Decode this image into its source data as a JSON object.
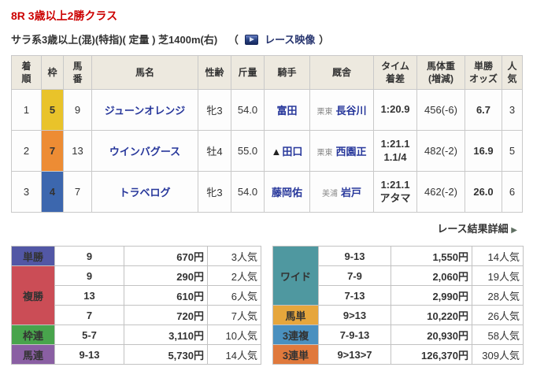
{
  "page": {
    "title": "8R 3歳以上2勝クラス",
    "conditions": "サラ系3歳以上(混)(特指)( 定量 ) 芝1400m(右)",
    "video_link": {
      "open_paren": "（",
      "label": "レース映像",
      "close_paren": "）",
      "icon": "video-play-icon"
    },
    "detail_link": {
      "label": "レース結果詳細",
      "arrow": "▶",
      "icon": "arrow-right-icon"
    }
  },
  "results_table": {
    "headers": [
      "着\n順",
      "枠",
      "馬\n番",
      "馬名",
      "性齢",
      "斤量",
      "騎手",
      "厩舎",
      "タイム\n着差",
      "馬体重\n(増減)",
      "単勝\nオッズ",
      "人\n気"
    ],
    "rows": [
      {
        "finish": "1",
        "frame": "5",
        "frame_color": "#e9c32a",
        "horse_no": "9",
        "horse": "ジューンオレンジ",
        "sex_age": "牝3",
        "load": "54.0",
        "jockey_mark": "",
        "jockey": "富田",
        "stable_region": "栗東",
        "stable": "長谷川",
        "time": "1:20.9",
        "margin": "",
        "body_weight": "456(-6)",
        "odds": "6.7",
        "popularity": "3",
        "popularity_highlight": true
      },
      {
        "finish": "2",
        "frame": "7",
        "frame_color": "#ed8c34",
        "horse_no": "13",
        "horse": "ウインバグース",
        "sex_age": "牡4",
        "load": "55.0",
        "jockey_mark": "▲",
        "jockey": "田口",
        "stable_region": "栗東",
        "stable": "西園正",
        "time": "1:21.1",
        "margin": "1.1/4",
        "body_weight": "482(-2)",
        "odds": "16.9",
        "popularity": "5",
        "popularity_highlight": false
      },
      {
        "finish": "3",
        "frame": "4",
        "frame_color": "#3c67ae",
        "horse_no": "7",
        "horse": "トラベログ",
        "sex_age": "牝3",
        "load": "54.0",
        "jockey_mark": "",
        "jockey": "藤岡佑",
        "stable_region": "美浦",
        "stable": "岩戸",
        "time": "1:21.1",
        "margin": "アタマ",
        "body_weight": "462(-2)",
        "odds": "26.0",
        "popularity": "6",
        "popularity_highlight": false
      }
    ]
  },
  "payout_left": {
    "groups": [
      {
        "label": "単勝",
        "color": "#5257a5",
        "rows": [
          {
            "combo": "9",
            "payout": "670円",
            "pop": "3人気"
          }
        ]
      },
      {
        "label": "複勝",
        "color": "#cb4d56",
        "rows": [
          {
            "combo": "9",
            "payout": "290円",
            "pop": "2人気"
          },
          {
            "combo": "13",
            "payout": "610円",
            "pop": "6人気"
          },
          {
            "combo": "7",
            "payout": "720円",
            "pop": "7人気"
          }
        ]
      },
      {
        "label": "枠連",
        "color": "#48a44c",
        "rows": [
          {
            "combo": "5-7",
            "payout": "3,110円",
            "pop": "10人気"
          }
        ]
      },
      {
        "label": "馬連",
        "color": "#8a5fa3",
        "rows": [
          {
            "combo": "9-13",
            "payout": "5,730円",
            "pop": "14人気"
          }
        ]
      }
    ]
  },
  "payout_right": {
    "groups": [
      {
        "label": "ワイド",
        "color": "#4f98a0",
        "rows": [
          {
            "combo": "9-13",
            "payout": "1,550円",
            "pop": "14人気"
          },
          {
            "combo": "7-9",
            "payout": "2,060円",
            "pop": "19人気"
          },
          {
            "combo": "7-13",
            "payout": "2,990円",
            "pop": "28人気"
          }
        ]
      },
      {
        "label": "馬単",
        "color": "#e6a63c",
        "rows": [
          {
            "combo": "9>13",
            "payout": "10,220円",
            "pop": "26人気"
          }
        ]
      },
      {
        "label": "3連複",
        "color": "#4a90bf",
        "rows": [
          {
            "combo": "7-9-13",
            "payout": "20,930円",
            "pop": "58人気"
          }
        ]
      },
      {
        "label": "3連単",
        "color": "#e0793c",
        "rows": [
          {
            "combo": "9>13>7",
            "payout": "126,370円",
            "pop": "309人気"
          }
        ]
      }
    ]
  }
}
